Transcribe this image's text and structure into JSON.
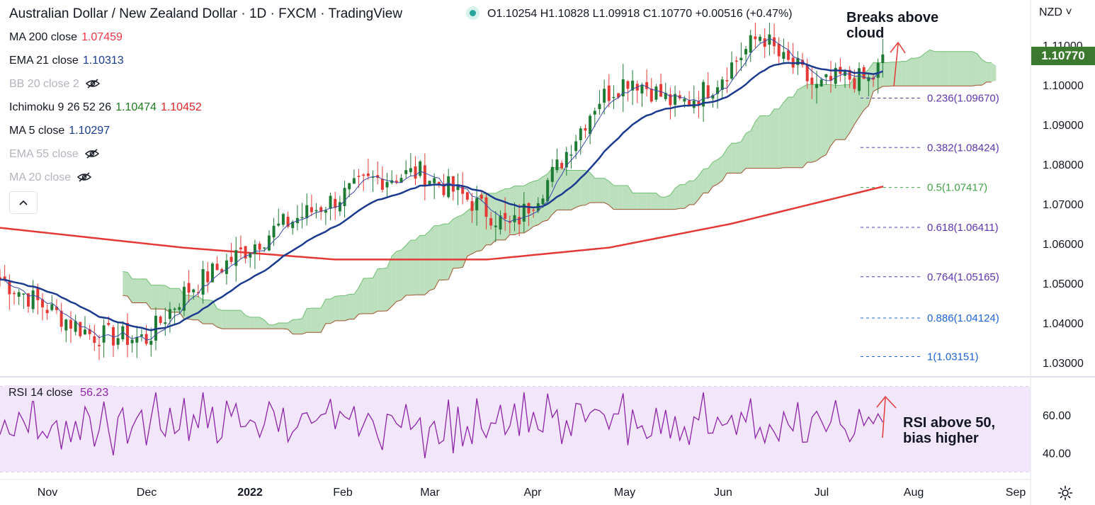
{
  "header": {
    "title": "Australian Dollar / New Zealand Dollar · 1D · FXCM · TradingView",
    "ohlc": "O1.10254  H1.10828  L1.09918  C1.10770  +0.00516 (+0.47%)",
    "currency": "NZD",
    "last_price": "1.10770"
  },
  "legend": [
    {
      "label": "MA 200 close",
      "value": "1.07459",
      "color": "#f23645",
      "hidden": false
    },
    {
      "label": "EMA 21 close",
      "value": "1.10313",
      "color": "#1a3a8f",
      "hidden": false
    },
    {
      "label": "BB 20 close 2",
      "value": "",
      "color": "#b2b5be",
      "hidden": true
    },
    {
      "label": "Ichimoku 9 26 52 26",
      "value": "1.10474",
      "value2": "1.10452",
      "color": "#1e7b1e",
      "color2": "#e0262a",
      "hidden": false
    },
    {
      "label": "MA 5 close",
      "value": "1.10297",
      "color": "#1a3a8f",
      "hidden": false
    },
    {
      "label": "EMA 55 close",
      "value": "",
      "color": "#b2b5be",
      "hidden": true
    },
    {
      "label": "MA 20 close",
      "value": "",
      "color": "#b2b5be",
      "hidden": true
    }
  ],
  "annotations": {
    "cloud": [
      "Breaks above",
      "cloud"
    ],
    "rsi": [
      "RSI above 50,",
      "bias higher"
    ]
  },
  "rsi_legend": {
    "label": "RSI 14 close",
    "value": "56.23"
  },
  "colors": {
    "up": "#1e7b34",
    "down": "#e53935",
    "ma200": "#e53935",
    "ema21": "#1a3a8f",
    "ma5": "#1a3a8f",
    "cloud_bull": "#a5d6a7",
    "cloud_bear": "#f28b82",
    "rsi": "#8e24aa",
    "rsi_bg": "#f2e6fa"
  },
  "chart_data": {
    "type": "candlestick",
    "title": "Australian Dollar / New Zealand Dollar · 1D · FXCM",
    "y_axis": {
      "ticks": [
        "1.11000",
        "1.10000",
        "1.09000",
        "1.08000",
        "1.07000",
        "1.06000",
        "1.05000",
        "1.04000",
        "1.03000"
      ],
      "ylim": [
        1.026,
        1.117
      ]
    },
    "x_axis": {
      "ticks": [
        "Nov",
        "Dec",
        "2022",
        "Feb",
        "Mar",
        "Apr",
        "May",
        "Jun",
        "Jul",
        "Aug",
        "Sep"
      ]
    },
    "close_path": {
      "x_day": [
        0,
        30,
        48,
        61,
        76,
        91,
        107,
        122,
        138,
        152,
        168,
        182,
        196,
        207,
        222,
        226,
        234,
        250,
        257,
        262,
        268,
        276,
        286,
        291
      ],
      "close": [
        1.051,
        1.037,
        1.036,
        1.048,
        1.056,
        1.064,
        1.07,
        1.076,
        1.078,
        1.072,
        1.064,
        1.078,
        1.096,
        1.102,
        1.095,
        1.096,
        1.1,
        1.113,
        1.106,
        1.104,
        1.099,
        1.102,
        1.101,
        1.1077
      ]
    },
    "ma200": {
      "x_day": [
        0,
        60,
        110,
        160,
        200,
        240,
        291
      ],
      "value": [
        1.064,
        1.059,
        1.056,
        1.056,
        1.059,
        1.065,
        1.0746
      ]
    },
    "fibonacci": [
      {
        "label": "0.236(1.09670)",
        "level": 0.236,
        "price": 1.0967
      },
      {
        "label": "0.382(1.08424)",
        "level": 0.382,
        "price": 1.08424
      },
      {
        "label": "0.5(1.07417)",
        "level": 0.5,
        "price": 1.07417
      },
      {
        "label": "0.618(1.06411)",
        "level": 0.618,
        "price": 1.06411
      },
      {
        "label": "0.764(1.05165)",
        "level": 0.764,
        "price": 1.05165
      },
      {
        "label": "0.886(1.04124)",
        "level": 0.886,
        "price": 1.04124
      },
      {
        "label": "1(1.03151)",
        "level": 1,
        "price": 1.03151
      }
    ],
    "rsi": {
      "ticks": [
        "60.00",
        "40.00"
      ],
      "ylim": [
        30,
        75
      ],
      "last": 56.23
    },
    "series": [
      {
        "name": "MA 200 close",
        "last": 1.07459
      },
      {
        "name": "EMA 21 close",
        "last": 1.10313
      },
      {
        "name": "MA 5 close",
        "last": 1.10297
      },
      {
        "name": "Ichimoku span A",
        "last": 1.10474
      },
      {
        "name": "Ichimoku span B",
        "last": 1.10452
      }
    ]
  }
}
